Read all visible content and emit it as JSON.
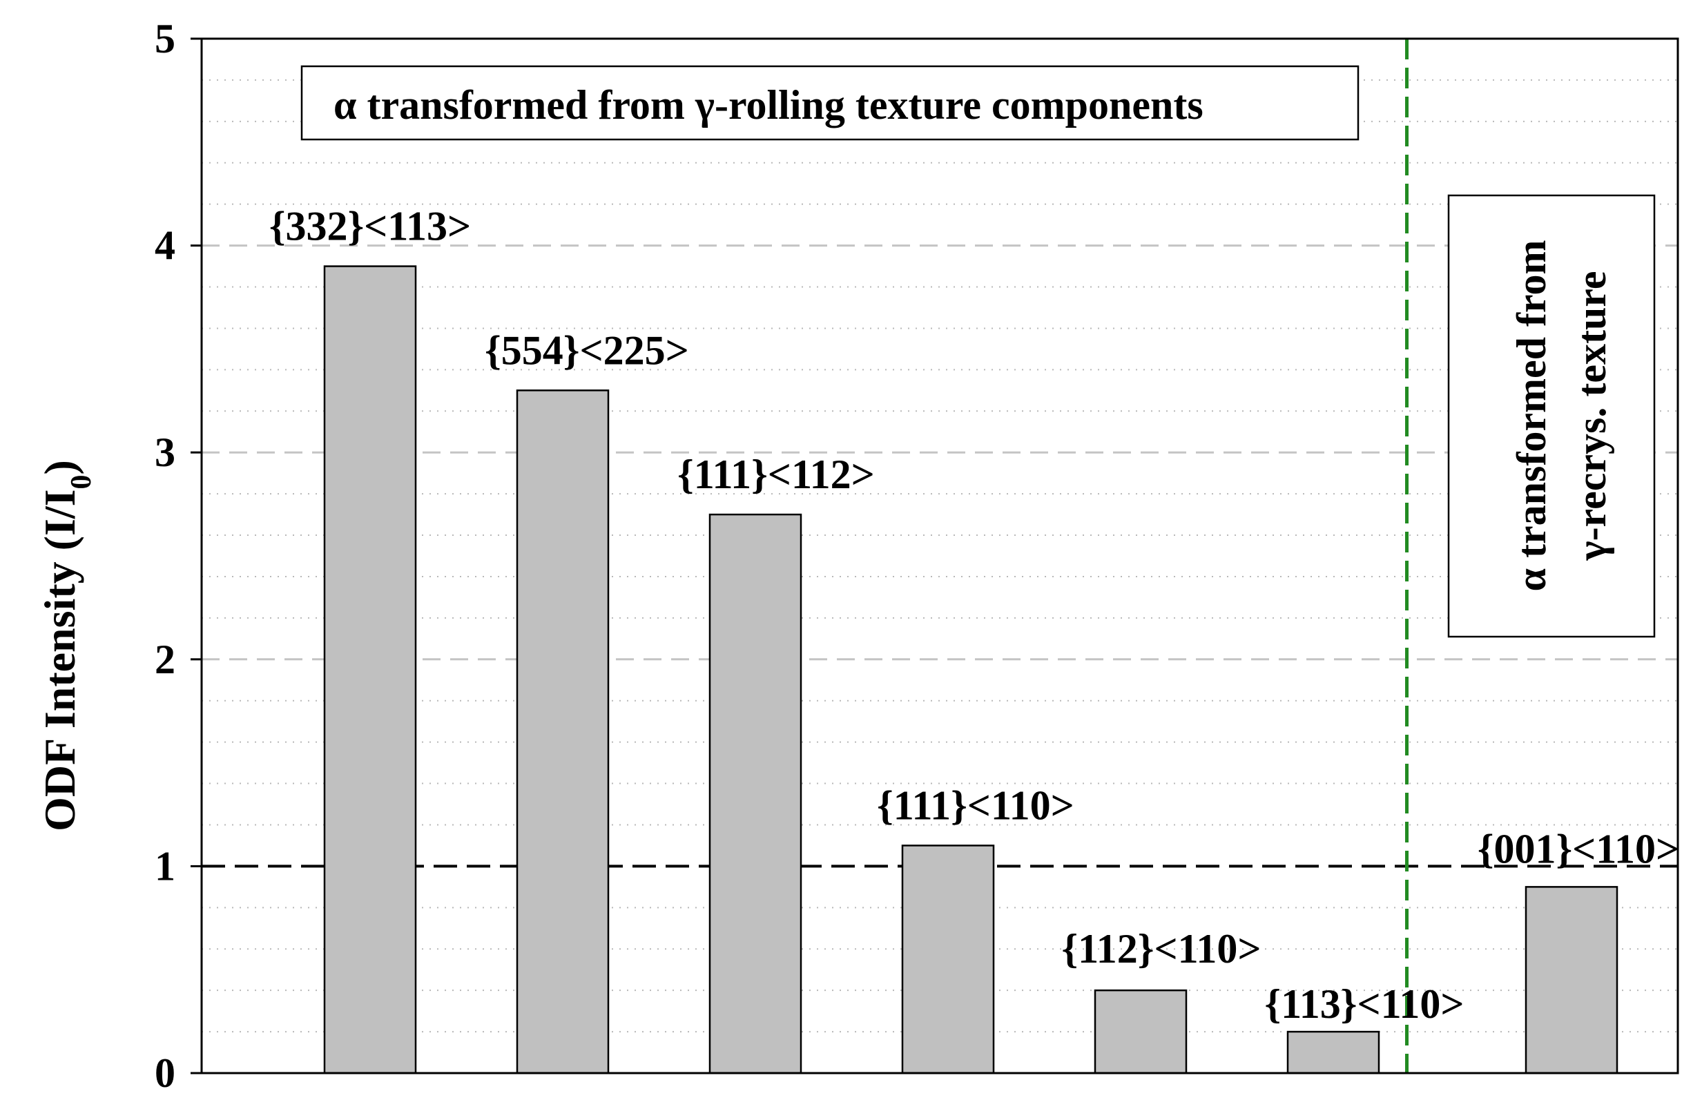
{
  "chart_data": {
    "type": "bar",
    "ylabel": "ODF Intensity (I/I",
    "ylabel_subscript": "0",
    "ylabel_close": ")",
    "ylim": [
      0,
      5
    ],
    "yticks": [
      "0",
      "1",
      "2",
      "3",
      "4",
      "5"
    ],
    "reference_line": 1,
    "grid": true,
    "categories": [
      "{332}<113>",
      "{554}<225>",
      "{111}<112>",
      "{111}<110>",
      "{112}<110>",
      "{113}<110>",
      "{001}<110>"
    ],
    "values": [
      3.9,
      3.3,
      2.7,
      1.1,
      0.4,
      0.2,
      0.9
    ],
    "bar_color": "#c0c0c0",
    "divider_color": "#228b22",
    "annotations": {
      "rolling_box": "α transformed from γ-rolling texture components",
      "recrys_box_line1": "α transformed from",
      "recrys_box_line2": "γ-recrys. texture"
    }
  }
}
